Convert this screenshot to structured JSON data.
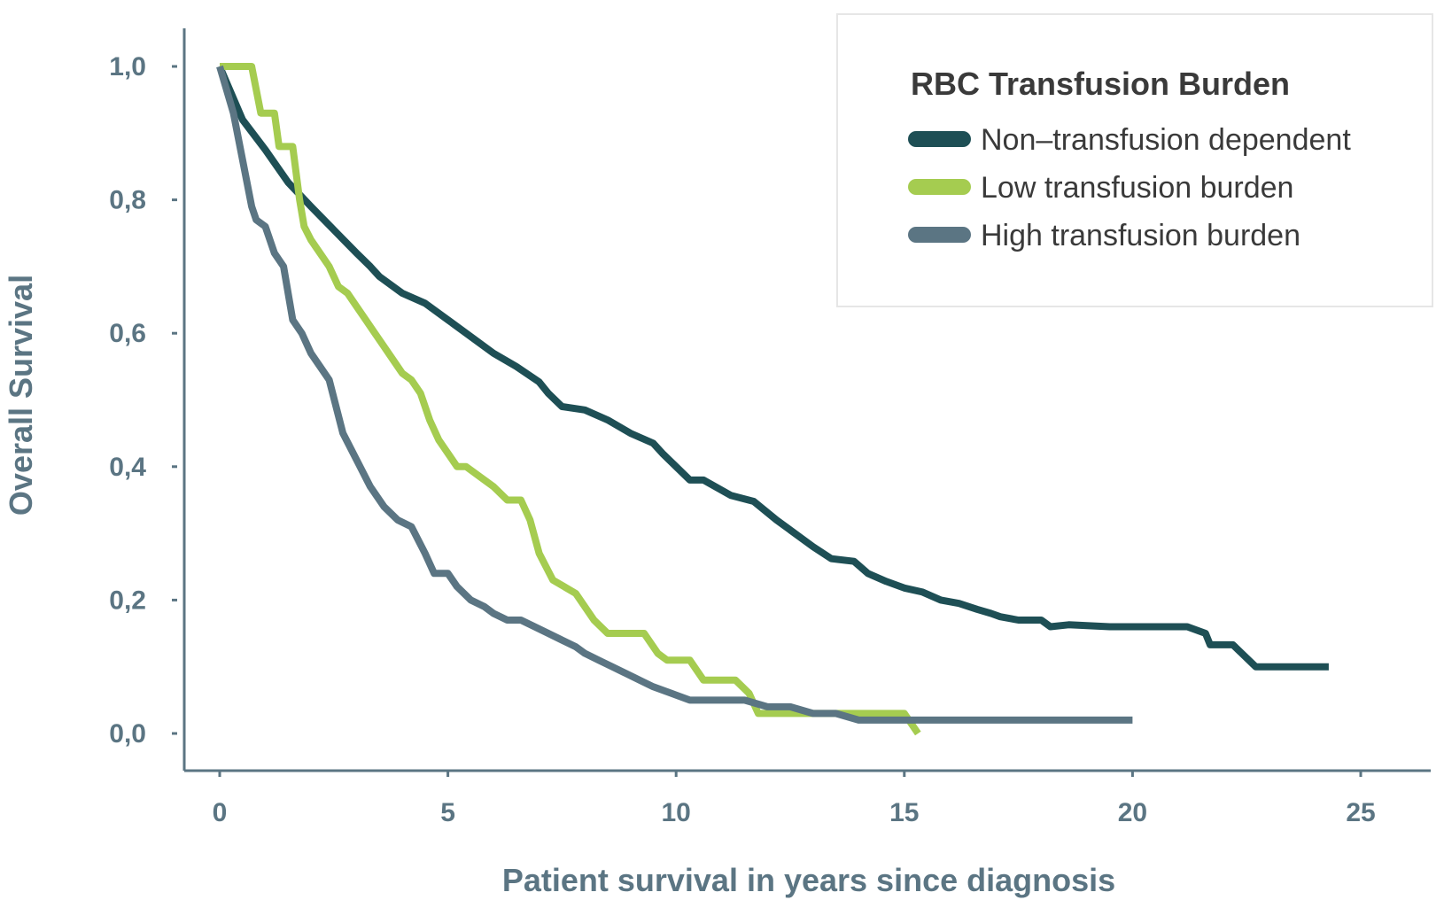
{
  "chart_data": {
    "type": "line",
    "title": "",
    "xlabel": "Patient survival in years since diagnosis",
    "ylabel": "Overall Survival",
    "xlim": [
      -1.5,
      26.5
    ],
    "ylim": [
      -0.06,
      1.06
    ],
    "x_ticks": [
      0,
      5,
      10,
      15,
      20,
      25
    ],
    "x_tick_labels": [
      "0",
      "5",
      "10",
      "15",
      "20",
      "25"
    ],
    "y_ticks": [
      0,
      0.2,
      0.4,
      0.6,
      0.8,
      1.0
    ],
    "y_tick_labels": [
      "0,0",
      "0,2",
      "0,4",
      "0,6",
      "0,8",
      "1,0"
    ],
    "grid": false,
    "legend": {
      "title": "RBC Transfusion Burden",
      "placement": "top-right"
    },
    "series": [
      {
        "name": "Non–transfusion dependent",
        "color": "#1e4f55",
        "x": [
          0,
          0.5,
          1,
          1.5,
          2,
          2.5,
          3,
          3.3,
          3.5,
          4,
          4.5,
          5,
          5.5,
          6,
          6.5,
          7,
          7.2,
          7.5,
          8,
          8.5,
          9,
          9.5,
          9.7,
          10.3,
          10.6,
          11.2,
          11.7,
          12.2,
          12.6,
          13,
          13.4,
          13.9,
          14.2,
          14.6,
          15,
          15.4,
          15.8,
          16.2,
          16.6,
          16.9,
          17.1,
          17.5,
          18,
          18.2,
          18.6,
          19.5,
          20.5,
          21.2,
          21.6,
          21.7,
          22.2,
          22.7,
          23.5,
          24.3
        ],
        "y": [
          1.0,
          0.92,
          0.875,
          0.826,
          0.79,
          0.755,
          0.72,
          0.7,
          0.685,
          0.66,
          0.645,
          0.62,
          0.595,
          0.57,
          0.55,
          0.527,
          0.51,
          0.49,
          0.485,
          0.47,
          0.45,
          0.435,
          0.42,
          0.38,
          0.38,
          0.357,
          0.348,
          0.32,
          0.3,
          0.28,
          0.262,
          0.258,
          0.24,
          0.228,
          0.218,
          0.212,
          0.2,
          0.195,
          0.186,
          0.18,
          0.175,
          0.17,
          0.17,
          0.16,
          0.163,
          0.16,
          0.16,
          0.16,
          0.15,
          0.133,
          0.133,
          0.1,
          0.1,
          0.1
        ]
      },
      {
        "name": "Low transfusion burden",
        "color": "#a5cc50",
        "x": [
          0,
          0.3,
          0.7,
          0.9,
          1.2,
          1.3,
          1.6,
          1.75,
          1.85,
          2.0,
          2.2,
          2.4,
          2.6,
          2.8,
          3.0,
          3.2,
          3.4,
          3.6,
          3.8,
          4.0,
          4.2,
          4.4,
          4.6,
          4.8,
          5.0,
          5.2,
          5.4,
          5.8,
          6.0,
          6.3,
          6.6,
          6.8,
          7.0,
          7.3,
          7.8,
          8.2,
          8.5,
          9.0,
          9.3,
          9.6,
          9.8,
          10.3,
          10.6,
          11.0,
          11.3,
          11.6,
          11.8,
          12.2,
          13.0,
          14.0,
          15.0,
          15.3
        ],
        "y": [
          1.0,
          1.0,
          1.0,
          0.93,
          0.93,
          0.88,
          0.88,
          0.8,
          0.76,
          0.74,
          0.72,
          0.7,
          0.67,
          0.66,
          0.64,
          0.62,
          0.6,
          0.58,
          0.56,
          0.54,
          0.53,
          0.51,
          0.47,
          0.44,
          0.42,
          0.4,
          0.4,
          0.38,
          0.37,
          0.35,
          0.35,
          0.32,
          0.27,
          0.23,
          0.21,
          0.17,
          0.15,
          0.15,
          0.15,
          0.12,
          0.11,
          0.11,
          0.08,
          0.08,
          0.08,
          0.06,
          0.03,
          0.03,
          0.03,
          0.03,
          0.03,
          0.0
        ]
      },
      {
        "name": "High transfusion burden",
        "color": "#5b7583",
        "x": [
          0,
          0.3,
          0.5,
          0.7,
          0.8,
          1.0,
          1.2,
          1.4,
          1.6,
          1.8,
          2.0,
          2.2,
          2.4,
          2.7,
          3.0,
          3.3,
          3.6,
          3.9,
          4.2,
          4.5,
          4.7,
          5.0,
          5.2,
          5.5,
          5.8,
          6.0,
          6.3,
          6.6,
          6.9,
          7.2,
          7.5,
          7.8,
          8.0,
          8.3,
          8.6,
          8.9,
          9.2,
          9.5,
          9.9,
          10.3,
          10.7,
          11.2,
          11.5,
          12.0,
          12.5,
          13.0,
          13.5,
          14.0,
          15.0,
          16.0,
          17.0,
          18.0,
          19.0,
          20.0
        ],
        "y": [
          1.0,
          0.93,
          0.86,
          0.79,
          0.77,
          0.76,
          0.72,
          0.7,
          0.62,
          0.6,
          0.57,
          0.55,
          0.53,
          0.45,
          0.41,
          0.37,
          0.34,
          0.32,
          0.31,
          0.27,
          0.24,
          0.24,
          0.22,
          0.2,
          0.19,
          0.18,
          0.17,
          0.17,
          0.16,
          0.15,
          0.14,
          0.13,
          0.12,
          0.11,
          0.1,
          0.09,
          0.08,
          0.07,
          0.06,
          0.05,
          0.05,
          0.05,
          0.05,
          0.04,
          0.04,
          0.03,
          0.03,
          0.02,
          0.02,
          0.02,
          0.02,
          0.02,
          0.02,
          0.02
        ]
      }
    ]
  }
}
